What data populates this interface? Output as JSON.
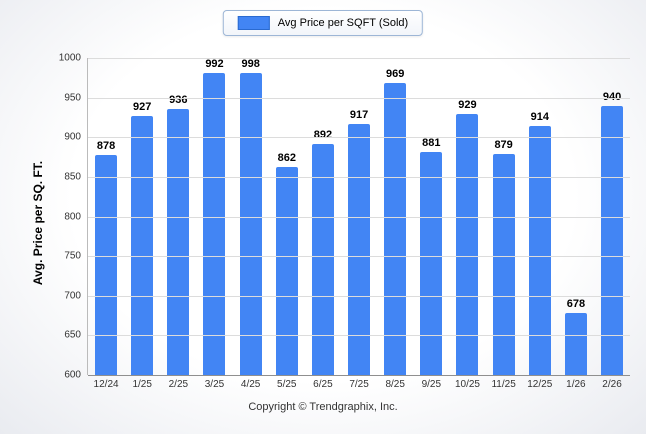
{
  "chart_data": {
    "type": "bar",
    "title": "",
    "legend": "Avg Price per SQFT (Sold)",
    "categories": [
      "12/24",
      "1/25",
      "2/25",
      "3/25",
      "4/25",
      "5/25",
      "6/25",
      "7/25",
      "8/25",
      "9/25",
      "10/25",
      "11/25",
      "12/25",
      "1/26",
      "2/26"
    ],
    "values": [
      878,
      927,
      936,
      992,
      998,
      862,
      892,
      917,
      969,
      881,
      929,
      879,
      914,
      678,
      940
    ],
    "xlabel": "",
    "ylabel": "Avg. Price per SQ. FT.",
    "ylim": [
      600,
      1000
    ],
    "yticks": [
      600,
      650,
      700,
      750,
      800,
      850,
      900,
      950,
      1000
    ],
    "grid": true,
    "legend_position": "top-center",
    "bar_color": "#4285f4",
    "footer": "Copyright © Trendgraphix, Inc."
  }
}
